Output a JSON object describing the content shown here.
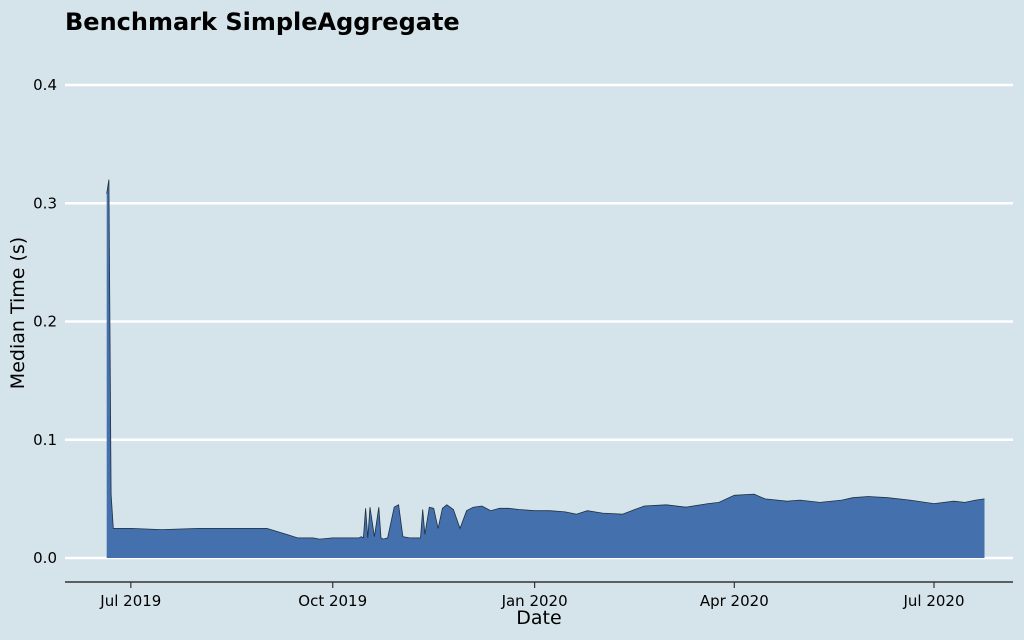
{
  "chart_data": {
    "type": "area",
    "title": "Benchmark SimpleAggregate",
    "xlabel": "Date",
    "ylabel": "Median Time (s)",
    "ylim": [
      0,
      0.42
    ],
    "yticks": [
      0.0,
      0.1,
      0.2,
      0.3,
      0.4
    ],
    "ytick_labels": [
      "0.0",
      "0.1",
      "0.2",
      "0.3",
      "0.4"
    ],
    "xlim": [
      "2019-06-01",
      "2020-08-06"
    ],
    "xticks": [
      "2019-07-01",
      "2019-10-01",
      "2020-01-01",
      "2020-04-01",
      "2020-07-01"
    ],
    "xtick_labels": [
      "Jul 2019",
      "Oct 2019",
      "Jan 2020",
      "Apr 2020",
      "Jul 2020"
    ],
    "grid": "horizontal",
    "colors": {
      "fill": "#4470ad",
      "line": "#1f3040",
      "grid": "#ffffff",
      "background": "#d5e4eb"
    },
    "series": [
      {
        "x": [
          "2019-06-20",
          "2019-06-21",
          "2019-06-22",
          "2019-06-23",
          "2019-06-24",
          "2019-06-25",
          "2019-07-01",
          "2019-07-15",
          "2019-08-01",
          "2019-08-20",
          "2019-09-01",
          "2019-09-10",
          "2019-09-15",
          "2019-09-22",
          "2019-09-25",
          "2019-10-01",
          "2019-10-08",
          "2019-10-13",
          "2019-10-14",
          "2019-10-15",
          "2019-10-16",
          "2019-10-17",
          "2019-10-18",
          "2019-10-20",
          "2019-10-22",
          "2019-10-23",
          "2019-10-24",
          "2019-10-26",
          "2019-10-29",
          "2019-10-31",
          "2019-11-02",
          "2019-11-05",
          "2019-11-08",
          "2019-11-10",
          "2019-11-11",
          "2019-11-12",
          "2019-11-14",
          "2019-11-16",
          "2019-11-18",
          "2019-11-20",
          "2019-11-22",
          "2019-11-25",
          "2019-11-28",
          "2019-12-01",
          "2019-12-04",
          "2019-12-08",
          "2019-12-12",
          "2019-12-16",
          "2019-12-20",
          "2019-12-25",
          "2020-01-01",
          "2020-01-08",
          "2020-01-15",
          "2020-01-20",
          "2020-01-25",
          "2020-02-01",
          "2020-02-10",
          "2020-02-20",
          "2020-03-01",
          "2020-03-10",
          "2020-03-20",
          "2020-03-25",
          "2020-04-01",
          "2020-04-10",
          "2020-04-15",
          "2020-04-25",
          "2020-05-01",
          "2020-05-10",
          "2020-05-20",
          "2020-05-25",
          "2020-06-01",
          "2020-06-10",
          "2020-06-20",
          "2020-07-01",
          "2020-07-10",
          "2020-07-15",
          "2020-07-20",
          "2020-07-24"
        ],
        "y": [
          0.308,
          0.32,
          0.054,
          0.025,
          0.025,
          0.025,
          0.025,
          0.024,
          0.025,
          0.025,
          0.025,
          0.02,
          0.017,
          0.017,
          0.016,
          0.017,
          0.017,
          0.017,
          0.018,
          0.017,
          0.042,
          0.017,
          0.043,
          0.018,
          0.043,
          0.017,
          0.016,
          0.017,
          0.043,
          0.045,
          0.018,
          0.017,
          0.017,
          0.017,
          0.041,
          0.02,
          0.043,
          0.042,
          0.025,
          0.042,
          0.045,
          0.041,
          0.025,
          0.04,
          0.043,
          0.044,
          0.04,
          0.042,
          0.042,
          0.041,
          0.04,
          0.04,
          0.039,
          0.037,
          0.04,
          0.038,
          0.037,
          0.044,
          0.045,
          0.043,
          0.046,
          0.047,
          0.053,
          0.054,
          0.05,
          0.048,
          0.049,
          0.047,
          0.049,
          0.051,
          0.052,
          0.051,
          0.049,
          0.046,
          0.048,
          0.047,
          0.049,
          0.05
        ]
      }
    ]
  }
}
